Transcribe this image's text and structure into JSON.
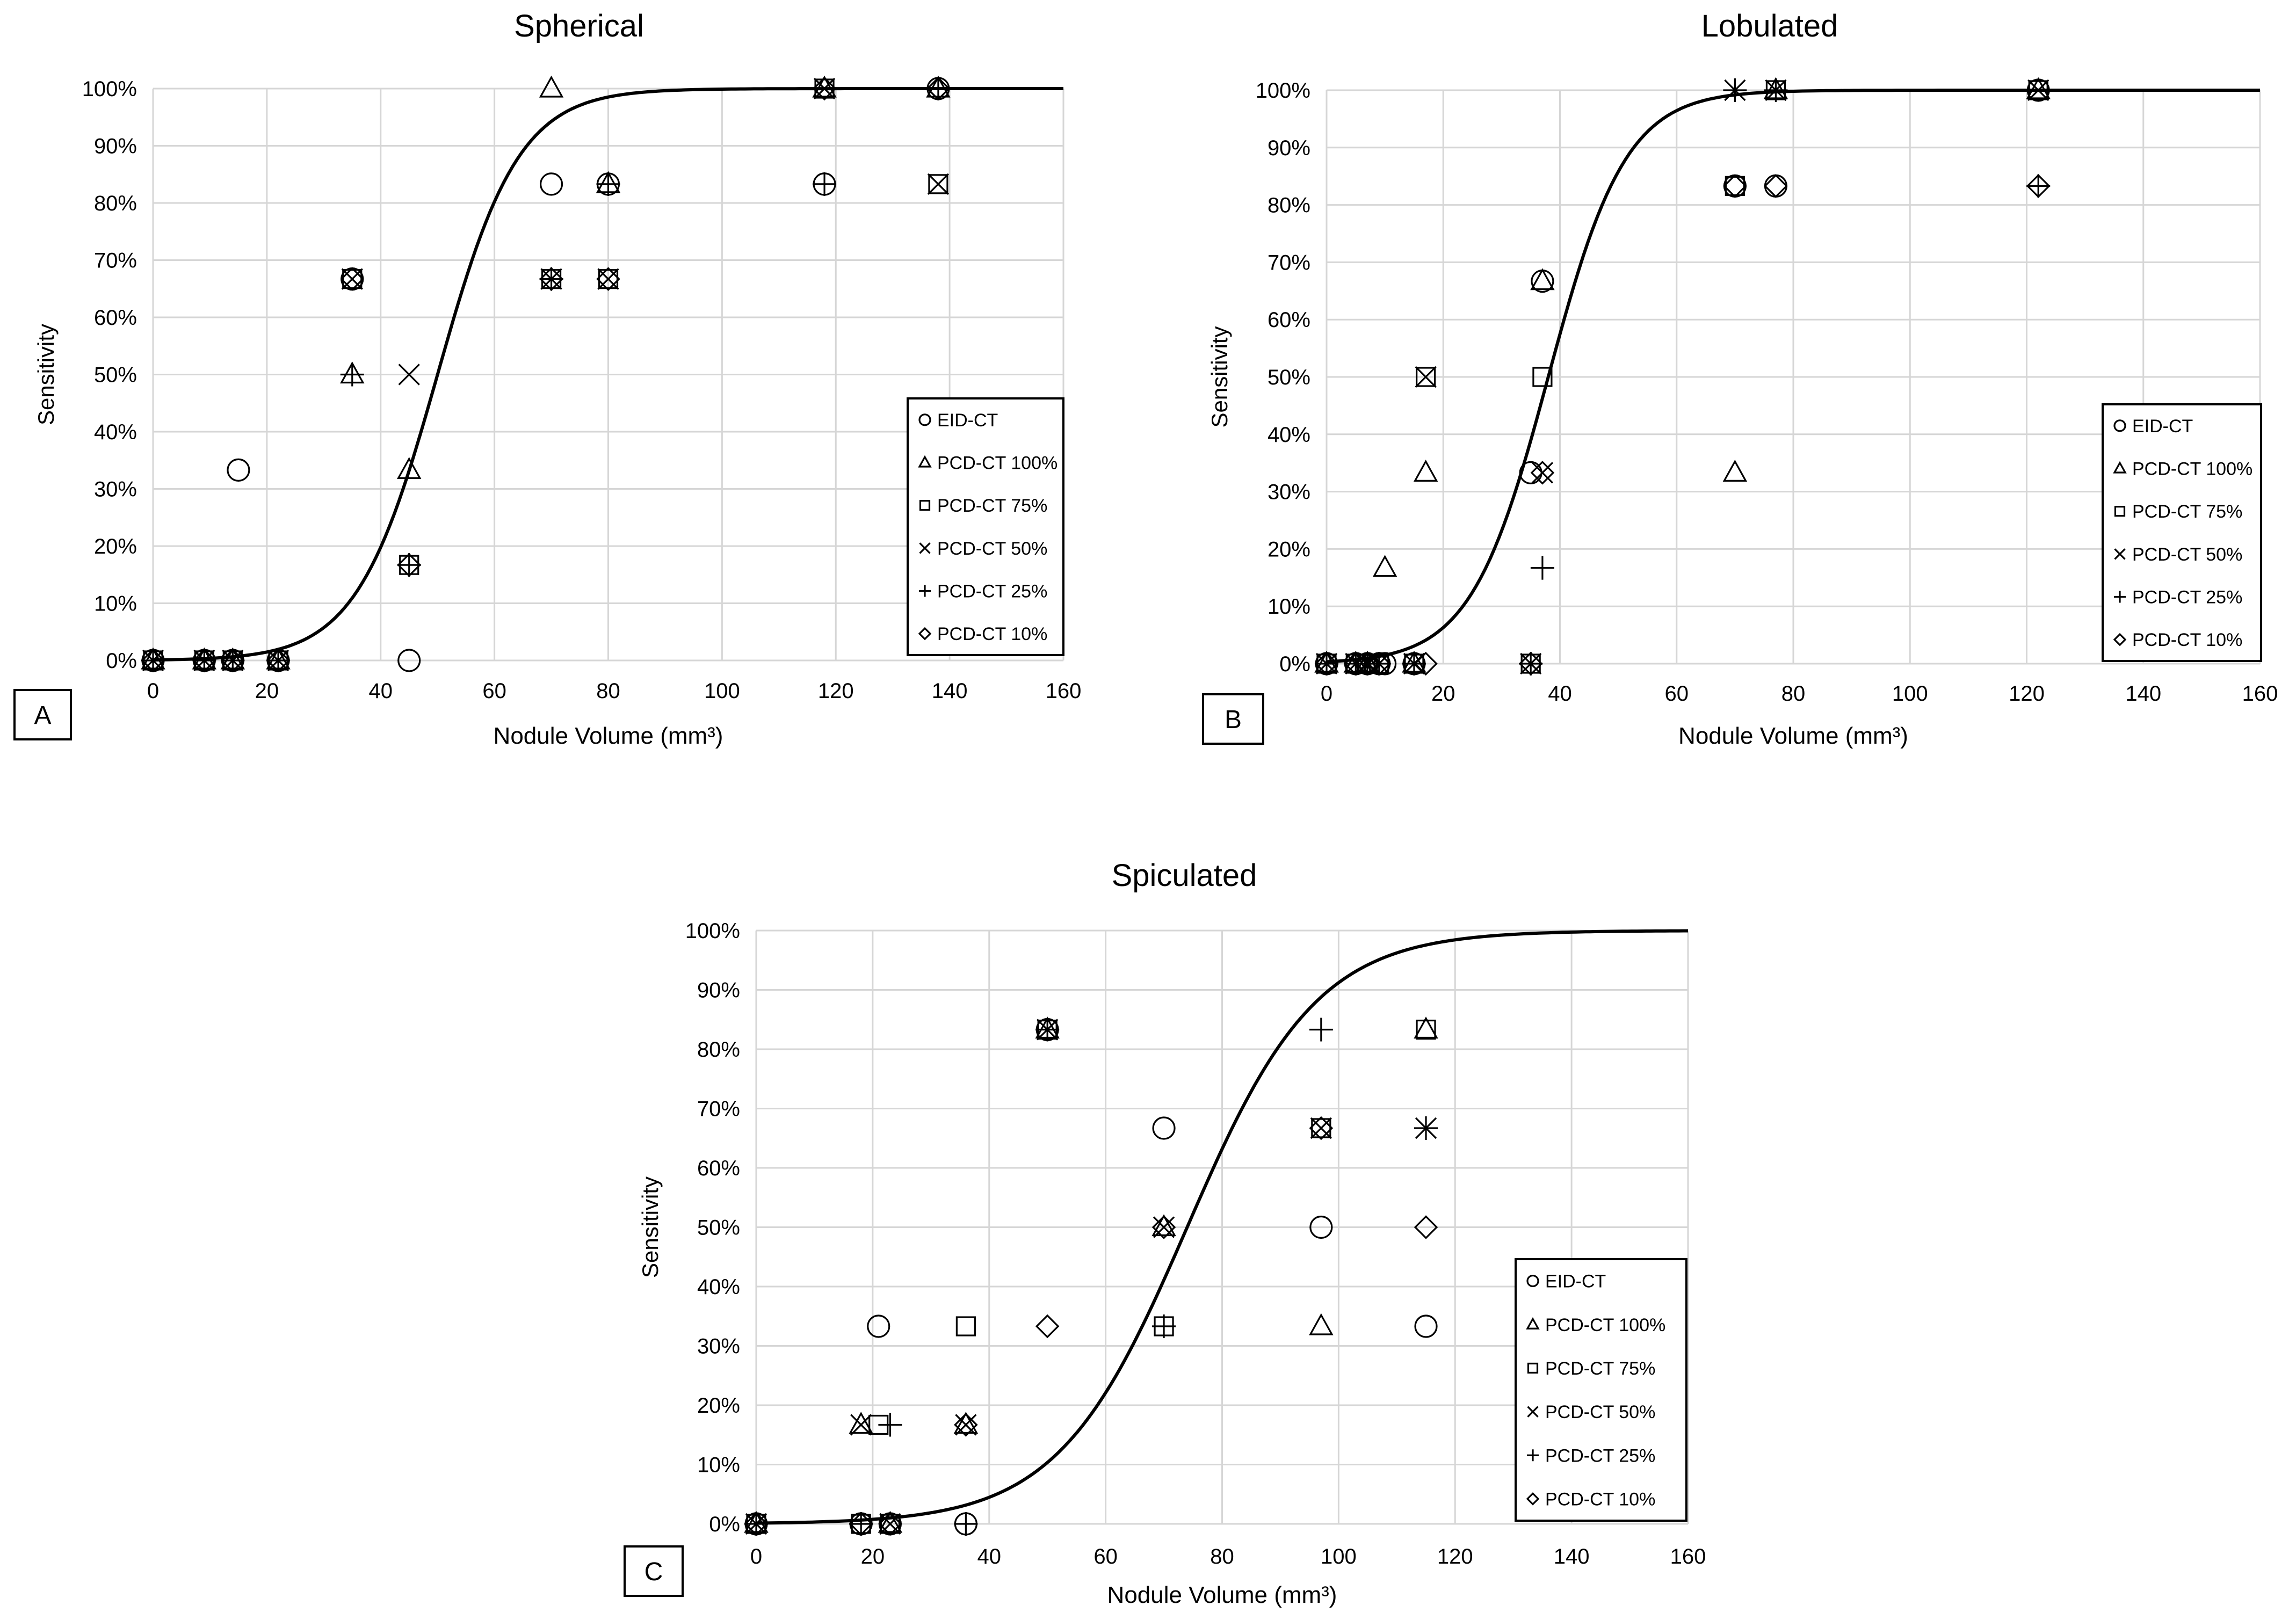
{
  "chart_data": [
    {
      "type": "scatter",
      "title": "Spherical",
      "panel_label": "A",
      "xlabel": "Nodule Volume (mm³)",
      "ylabel": "Sensitivity",
      "xlim": [
        0,
        160
      ],
      "ylim": [
        0,
        100
      ],
      "x_ticks": [
        "0",
        "20",
        "40",
        "60",
        "80",
        "100",
        "120",
        "140",
        "160"
      ],
      "y_ticks": [
        "0%",
        "10%",
        "20%",
        "30%",
        "40%",
        "50%",
        "60%",
        "70%",
        "80%",
        "90%",
        "100%"
      ],
      "grid": true,
      "legend_position": "right",
      "fit_curve": {
        "type": "logistic",
        "midpoint": 50,
        "slope": 0.14
      },
      "series": [
        {
          "name": "EID-CT",
          "marker": "circle",
          "points": [
            [
              0,
              0
            ],
            [
              9,
              0
            ],
            [
              14,
              0
            ],
            [
              15,
              33.3
            ],
            [
              22,
              0
            ],
            [
              35,
              66.7
            ],
            [
              45,
              0
            ],
            [
              70,
              83.3
            ],
            [
              80,
              83.3
            ],
            [
              118,
              83.3
            ],
            [
              138,
              100
            ]
          ]
        },
        {
          "name": "PCD-CT 100%",
          "marker": "triangle",
          "points": [
            [
              0,
              0
            ],
            [
              9,
              0
            ],
            [
              14,
              0
            ],
            [
              22,
              0
            ],
            [
              35,
              50
            ],
            [
              45,
              33.3
            ],
            [
              70,
              100
            ],
            [
              80,
              83.3
            ],
            [
              118,
              100
            ],
            [
              138,
              100
            ]
          ]
        },
        {
          "name": "PCD-CT 75%",
          "marker": "square",
          "points": [
            [
              0,
              0
            ],
            [
              9,
              0
            ],
            [
              14,
              0
            ],
            [
              22,
              0
            ],
            [
              35,
              66.7
            ],
            [
              45,
              16.7
            ],
            [
              70,
              66.7
            ],
            [
              80,
              66.7
            ],
            [
              118,
              100
            ],
            [
              138,
              83.3
            ]
          ]
        },
        {
          "name": "PCD-CT 50%",
          "marker": "x",
          "points": [
            [
              0,
              0
            ],
            [
              9,
              0
            ],
            [
              14,
              0
            ],
            [
              22,
              0
            ],
            [
              35,
              66.7
            ],
            [
              45,
              50
            ],
            [
              70,
              66.7
            ],
            [
              80,
              66.7
            ],
            [
              118,
              100
            ],
            [
              138,
              83.3
            ]
          ]
        },
        {
          "name": "PCD-CT 25%",
          "marker": "plus",
          "points": [
            [
              0,
              0
            ],
            [
              9,
              0
            ],
            [
              14,
              0
            ],
            [
              22,
              0
            ],
            [
              35,
              50
            ],
            [
              45,
              16.7
            ],
            [
              70,
              66.7
            ],
            [
              80,
              83.3
            ],
            [
              118,
              83.3
            ],
            [
              138,
              100
            ]
          ]
        },
        {
          "name": "PCD-CT 10%",
          "marker": "diamond",
          "points": [
            [
              0,
              0
            ],
            [
              9,
              0
            ],
            [
              14,
              0
            ],
            [
              22,
              0
            ],
            [
              35,
              66.7
            ],
            [
              45,
              16.7
            ],
            [
              70,
              66.7
            ],
            [
              80,
              66.7
            ],
            [
              118,
              100
            ],
            [
              138,
              100
            ]
          ]
        }
      ]
    },
    {
      "type": "scatter",
      "title": "Lobulated",
      "panel_label": "B",
      "xlabel": "Nodule Volume (mm³)",
      "ylabel": "Sensitivity",
      "xlim": [
        0,
        160
      ],
      "ylim": [
        0,
        100
      ],
      "x_ticks": [
        "0",
        "20",
        "40",
        "60",
        "80",
        "100",
        "120",
        "140",
        "160"
      ],
      "y_ticks": [
        "0%",
        "10%",
        "20%",
        "30%",
        "40%",
        "50%",
        "60%",
        "70%",
        "80%",
        "90%",
        "100%"
      ],
      "grid": true,
      "legend_position": "right",
      "fit_curve": {
        "type": "logistic",
        "midpoint": 38,
        "slope": 0.15
      },
      "series": [
        {
          "name": "EID-CT",
          "marker": "circle",
          "points": [
            [
              0,
              0
            ],
            [
              5,
              0
            ],
            [
              7,
              0
            ],
            [
              9,
              0
            ],
            [
              10,
              0
            ],
            [
              15,
              0
            ],
            [
              35,
              33.3
            ],
            [
              37,
              66.7
            ],
            [
              70,
              83.3
            ],
            [
              77,
              83.3
            ],
            [
              122,
              100
            ]
          ]
        },
        {
          "name": "PCD-CT 100%",
          "marker": "triangle",
          "points": [
            [
              0,
              0
            ],
            [
              5,
              0
            ],
            [
              7,
              0
            ],
            [
              10,
              16.7
            ],
            [
              17,
              33.3
            ],
            [
              15,
              0
            ],
            [
              37,
              66.7
            ],
            [
              70,
              33.3
            ],
            [
              77,
              100
            ],
            [
              122,
              100
            ]
          ]
        },
        {
          "name": "PCD-CT 75%",
          "marker": "square",
          "points": [
            [
              0,
              0
            ],
            [
              5,
              0
            ],
            [
              7,
              0
            ],
            [
              9,
              0
            ],
            [
              15,
              0
            ],
            [
              17,
              50
            ],
            [
              35,
              0
            ],
            [
              37,
              50
            ],
            [
              70,
              83.3
            ],
            [
              77,
              100
            ],
            [
              122,
              100
            ]
          ]
        },
        {
          "name": "PCD-CT 50%",
          "marker": "x",
          "points": [
            [
              0,
              0
            ],
            [
              5,
              0
            ],
            [
              7,
              0
            ],
            [
              9,
              0
            ],
            [
              15,
              0
            ],
            [
              17,
              50
            ],
            [
              35,
              0
            ],
            [
              37,
              33.3
            ],
            [
              70,
              100
            ],
            [
              77,
              100
            ],
            [
              122,
              100
            ]
          ]
        },
        {
          "name": "PCD-CT 25%",
          "marker": "plus",
          "points": [
            [
              0,
              0
            ],
            [
              5,
              0
            ],
            [
              7,
              0
            ],
            [
              9,
              0
            ],
            [
              15,
              0
            ],
            [
              35,
              0
            ],
            [
              37,
              16.7
            ],
            [
              70,
              100
            ],
            [
              77,
              100
            ],
            [
              122,
              83.3
            ]
          ]
        },
        {
          "name": "PCD-CT 10%",
          "marker": "diamond",
          "points": [
            [
              0,
              0
            ],
            [
              5,
              0
            ],
            [
              7,
              0
            ],
            [
              9,
              0
            ],
            [
              17,
              0
            ],
            [
              35,
              0
            ],
            [
              37,
              33.3
            ],
            [
              70,
              83.3
            ],
            [
              77,
              83.3
            ],
            [
              122,
              83.3
            ]
          ]
        }
      ]
    },
    {
      "type": "scatter",
      "title": "Spiculated",
      "panel_label": "C",
      "xlabel": "Nodule Volume (mm³)",
      "ylabel": "Sensitivity",
      "xlim": [
        0,
        160
      ],
      "ylim": [
        0,
        100
      ],
      "x_ticks": [
        "0",
        "20",
        "40",
        "60",
        "80",
        "100",
        "120",
        "140",
        "160"
      ],
      "y_ticks": [
        "0%",
        "10%",
        "20%",
        "30%",
        "40%",
        "50%",
        "60%",
        "70%",
        "80%",
        "90%",
        "100%"
      ],
      "grid": true,
      "legend_position": "right",
      "fit_curve": {
        "type": "logistic",
        "midpoint": 74,
        "slope": 0.09
      },
      "series": [
        {
          "name": "EID-CT",
          "marker": "circle",
          "points": [
            [
              0,
              0
            ],
            [
              18,
              0
            ],
            [
              21,
              33.3
            ],
            [
              23,
              0
            ],
            [
              36,
              0
            ],
            [
              50,
              83.3
            ],
            [
              70,
              66.7
            ],
            [
              97,
              50
            ],
            [
              115,
              33.3
            ]
          ]
        },
        {
          "name": "PCD-CT 100%",
          "marker": "triangle",
          "points": [
            [
              0,
              0
            ],
            [
              18,
              16.7
            ],
            [
              23,
              0
            ],
            [
              36,
              16.7
            ],
            [
              50,
              83.3
            ],
            [
              70,
              50
            ],
            [
              97,
              33.3
            ],
            [
              115,
              83.3
            ]
          ]
        },
        {
          "name": "PCD-CT 75%",
          "marker": "square",
          "points": [
            [
              0,
              0
            ],
            [
              18,
              0
            ],
            [
              21,
              16.7
            ],
            [
              23,
              0
            ],
            [
              36,
              33.3
            ],
            [
              50,
              83.3
            ],
            [
              70,
              33.3
            ],
            [
              97,
              66.7
            ],
            [
              115,
              83.3
            ]
          ]
        },
        {
          "name": "PCD-CT 50%",
          "marker": "x",
          "points": [
            [
              0,
              0
            ],
            [
              18,
              16.7
            ],
            [
              23,
              0
            ],
            [
              36,
              16.7
            ],
            [
              50,
              83.3
            ],
            [
              70,
              50
            ],
            [
              97,
              66.7
            ],
            [
              115,
              66.7
            ]
          ]
        },
        {
          "name": "PCD-CT 25%",
          "marker": "plus",
          "points": [
            [
              0,
              0
            ],
            [
              18,
              0
            ],
            [
              23,
              16.7
            ],
            [
              36,
              0
            ],
            [
              50,
              83.3
            ],
            [
              70,
              33.3
            ],
            [
              97,
              83.3
            ],
            [
              115,
              66.7
            ]
          ]
        },
        {
          "name": "PCD-CT 10%",
          "marker": "diamond",
          "points": [
            [
              0,
              0
            ],
            [
              18,
              0
            ],
            [
              23,
              0
            ],
            [
              36,
              16.7
            ],
            [
              50,
              33.3
            ],
            [
              70,
              50
            ],
            [
              97,
              66.7
            ],
            [
              115,
              50
            ]
          ]
        }
      ]
    }
  ]
}
